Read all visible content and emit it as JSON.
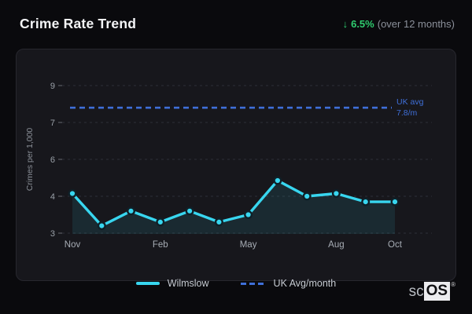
{
  "header": {
    "title": "Crime Rate Trend",
    "trend_arrow": "↓",
    "trend_value": "6.5%",
    "trend_period": "(over 12 months)"
  },
  "legend": {
    "items": [
      {
        "label": "Wilmslow"
      },
      {
        "label": "UK Avg/month"
      }
    ]
  },
  "footer": {
    "logo_prefix": "sc",
    "logo_suffix": "OS",
    "logo_mark": "®"
  },
  "theme": {
    "background": "#0a0a0d",
    "card_background": "#17171c",
    "card_border": "#27272e",
    "title_color": "#f4f5f7",
    "positive_green": "#2fcb6e",
    "muted_text": "#8b909a",
    "gridline": "#2e2f37"
  },
  "chart_data": {
    "type": "line",
    "title": "Crime Rate Trend",
    "ylabel": "Crimes per 1,000",
    "x": [
      "Nov",
      "Dec",
      "Jan",
      "Feb",
      "Mar",
      "Apr",
      "May",
      "Jun",
      "Jul",
      "Aug",
      "Sep",
      "Oct"
    ],
    "x_tick_labels_shown": [
      "Nov",
      "Feb",
      "May",
      "Aug",
      "Oct"
    ],
    "y_ticks": [
      3,
      4,
      6,
      7,
      9
    ],
    "ylim": [
      3,
      9.6
    ],
    "grid": "horizontal-dashed",
    "legend_position": "bottom",
    "series": [
      {
        "name": "Wilmslow",
        "type": "line",
        "color": "#38d6ef",
        "marker": true,
        "area_fill": "rgba(56,214,239,0.10)",
        "values": [
          4.15,
          3.2,
          3.6,
          3.3,
          3.6,
          3.3,
          3.5,
          4.85,
          4.0,
          4.15,
          3.85,
          3.85
        ]
      },
      {
        "name": "UK Avg/month",
        "type": "reference_line",
        "color": "#3f6fd8",
        "style": "dashed",
        "value": 7.8,
        "annotation_lines": [
          "UK avg",
          "7.8/m"
        ]
      }
    ]
  }
}
